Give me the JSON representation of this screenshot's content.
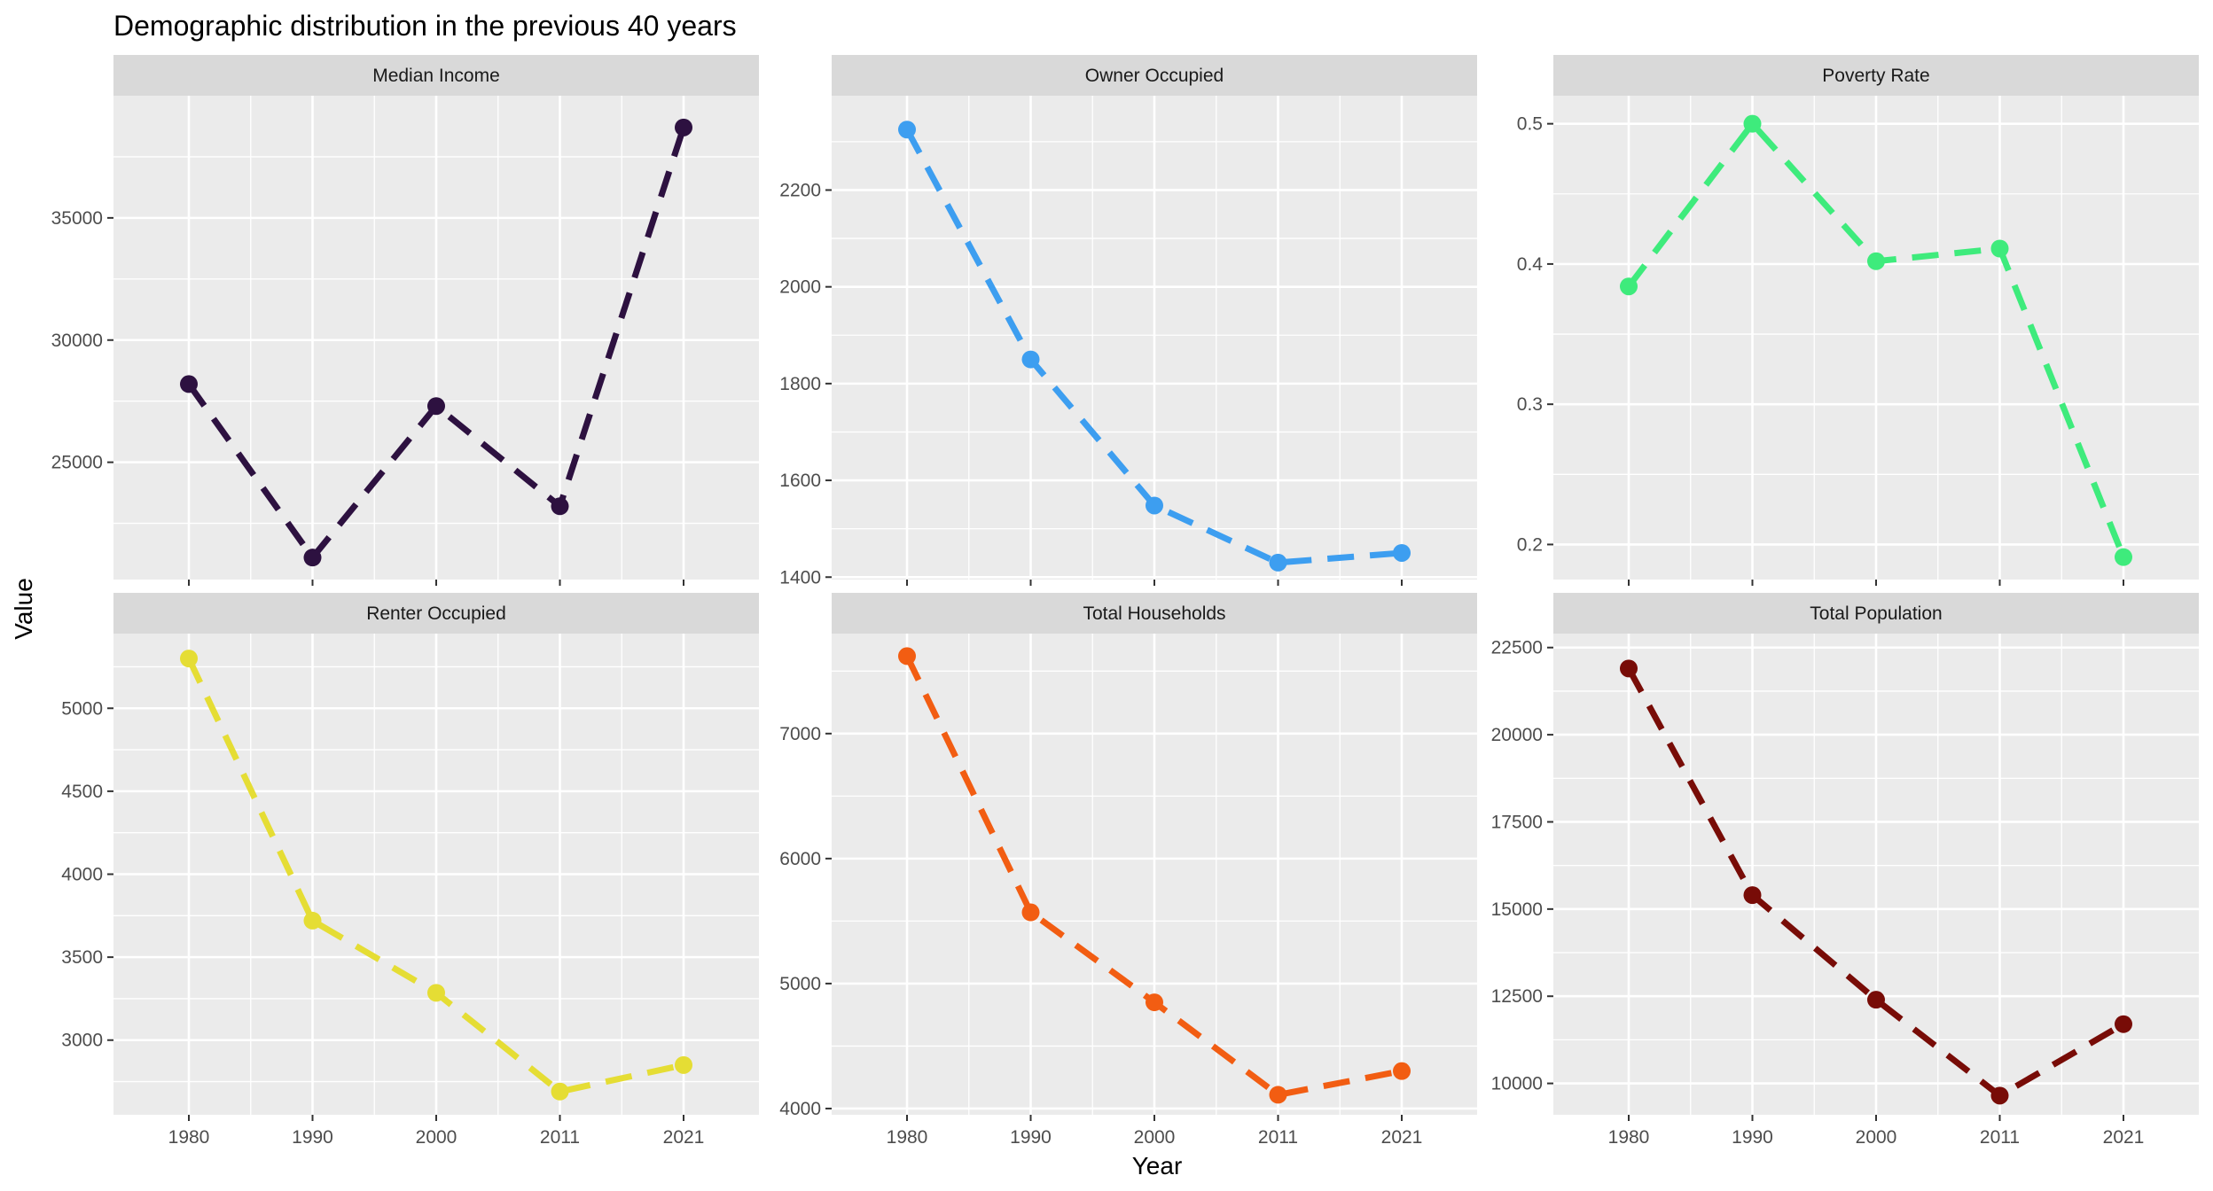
{
  "chart_data": {
    "type": "line",
    "title": "Demographic distribution in the previous 40 years",
    "xlabel": "Year",
    "ylabel": "Value",
    "x": [
      "1980",
      "1990",
      "2000",
      "2011",
      "2021"
    ],
    "grid": true,
    "line_style": "dashed",
    "panels": [
      {
        "name": "Median Income",
        "color": "#2d1140",
        "values": [
          28200,
          21100,
          27300,
          23200,
          38700
        ],
        "ylim": [
          20200,
          40000
        ],
        "yticks": [
          25000,
          30000,
          35000
        ],
        "ytick_labels": [
          "25000",
          "30000",
          "35000"
        ],
        "xtick_labels": []
      },
      {
        "name": "Owner Occupied",
        "color": "#3d9ef0",
        "values": [
          2325,
          1850,
          1548,
          1430,
          1450
        ],
        "ylim": [
          1395,
          2395
        ],
        "yticks": [
          1400,
          1600,
          1800,
          2000,
          2200
        ],
        "ytick_labels": [
          "1400",
          "1600",
          "1800",
          "2000",
          "2200"
        ],
        "xtick_labels": []
      },
      {
        "name": "Poverty Rate",
        "color": "#3eeb7c",
        "values": [
          0.384,
          0.5,
          0.402,
          0.411,
          0.191
        ],
        "ylim": [
          0.175,
          0.52
        ],
        "yticks": [
          0.2,
          0.3,
          0.4,
          0.5
        ],
        "ytick_labels": [
          "0.2",
          "0.3",
          "0.4",
          "0.5"
        ],
        "xtick_labels": []
      },
      {
        "name": "Renter Occupied",
        "color": "#e5dd34",
        "values": [
          5300,
          3720,
          3285,
          2690,
          2850
        ],
        "ylim": [
          2550,
          5450
        ],
        "yticks": [
          3000,
          3500,
          4000,
          4500,
          5000
        ],
        "ytick_labels": [
          "3000",
          "3500",
          "4000",
          "4500",
          "5000"
        ],
        "xtick_labels": [
          "1980",
          "1990",
          "2000",
          "2011",
          "2021"
        ]
      },
      {
        "name": "Total Households",
        "color": "#f25d12",
        "values": [
          7620,
          5570,
          4850,
          4110,
          4300
        ],
        "ylim": [
          3950,
          7800
        ],
        "yticks": [
          4000,
          5000,
          6000,
          7000
        ],
        "ytick_labels": [
          "4000",
          "5000",
          "6000",
          "7000"
        ],
        "xtick_labels": [
          "1980",
          "1990",
          "2000",
          "2011",
          "2021"
        ]
      },
      {
        "name": "Total Population",
        "color": "#780c07",
        "values": [
          21900,
          15400,
          12400,
          9650,
          11700
        ],
        "ylim": [
          9100,
          22900
        ],
        "yticks": [
          10000,
          12500,
          15000,
          17500,
          20000,
          22500
        ],
        "ytick_labels": [
          "10000",
          "12500",
          "15000",
          "17500",
          "20000",
          "22500"
        ],
        "xtick_labels": [
          "1980",
          "1990",
          "2000",
          "2011",
          "2021"
        ]
      }
    ]
  }
}
